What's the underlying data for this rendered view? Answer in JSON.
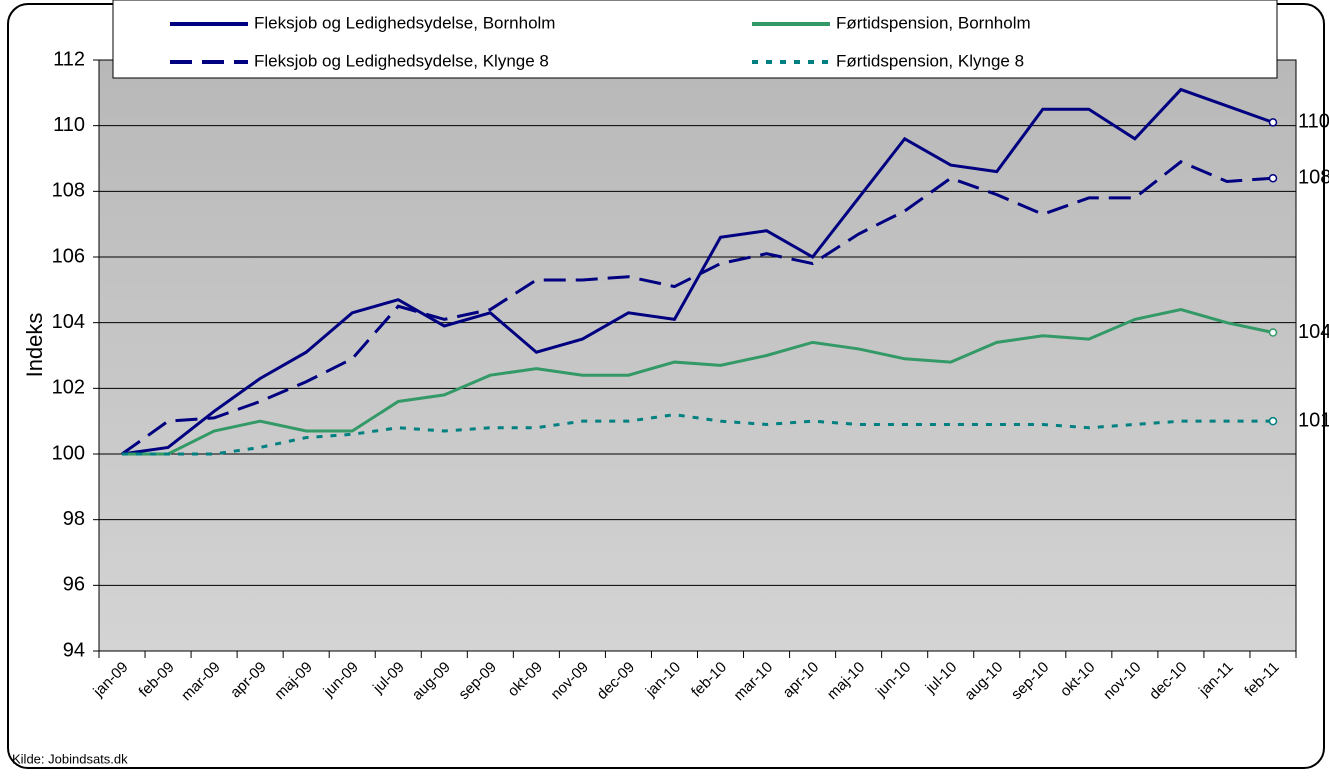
{
  "chart_data": {
    "type": "line",
    "y_label": "Indeks",
    "source": "Kilde: Jobindsats.dk",
    "categories": [
      "jan-09",
      "feb-09",
      "mar-09",
      "apr-09",
      "maj-09",
      "jun-09",
      "jul-09",
      "aug-09",
      "sep-09",
      "okt-09",
      "nov-09",
      "dec-09",
      "jan-10",
      "feb-10",
      "mar-10",
      "apr-10",
      "maj-10",
      "jun-10",
      "jul-10",
      "aug-10",
      "sep-10",
      "okt-10",
      "nov-10",
      "dec-10",
      "jan-11",
      "feb-11"
    ],
    "ylim": [
      94,
      112
    ],
    "yticks": [
      94,
      96,
      98,
      100,
      102,
      104,
      106,
      108,
      110,
      112
    ],
    "grid": true,
    "series": [
      {
        "name": "Fleksjob og Ledighedsydelse, Bornholm",
        "color": "#000080",
        "dash": "solid",
        "end_label": "110",
        "values": [
          100,
          100.2,
          101.3,
          102.3,
          103.1,
          104.3,
          104.7,
          103.9,
          104.3,
          103.1,
          103.5,
          104.3,
          104.1,
          106.6,
          106.8,
          106.0,
          107.8,
          109.6,
          108.8,
          108.6,
          110.5,
          110.5,
          109.6,
          111.1,
          110.6,
          110.1
        ]
      },
      {
        "name": "Førtidspension, Bornholm",
        "color": "#339966",
        "dash": "solid",
        "end_label": "104",
        "values": [
          100,
          100,
          100.7,
          101.0,
          100.7,
          100.7,
          101.6,
          101.8,
          102.4,
          102.6,
          102.4,
          102.4,
          102.8,
          102.7,
          103.0,
          103.4,
          103.2,
          102.9,
          102.8,
          103.4,
          103.6,
          103.5,
          104.1,
          104.4,
          104.0,
          103.7
        ]
      },
      {
        "name": "Fleksjob og Ledighedsydelse, Klynge 8",
        "color": "#000080",
        "dash": "dashed",
        "end_label": "108",
        "values": [
          100,
          101.0,
          101.1,
          101.6,
          102.2,
          102.9,
          104.5,
          104.1,
          104.4,
          105.3,
          105.3,
          105.4,
          105.1,
          105.8,
          106.1,
          105.8,
          106.7,
          107.4,
          108.4,
          107.9,
          107.3,
          107.8,
          107.8,
          108.9,
          108.3,
          108.4
        ]
      },
      {
        "name": "Førtidspension, Klynge 8",
        "color": "#008080",
        "dash": "dotted",
        "end_label": "101",
        "values": [
          100,
          100,
          100,
          100.2,
          100.5,
          100.6,
          100.8,
          100.7,
          100.8,
          100.8,
          101.0,
          101.0,
          101.2,
          101.0,
          100.9,
          101.0,
          100.9,
          100.9,
          100.9,
          100.9,
          100.9,
          100.8,
          100.9,
          101.0,
          101.0,
          101.0
        ]
      }
    ]
  }
}
